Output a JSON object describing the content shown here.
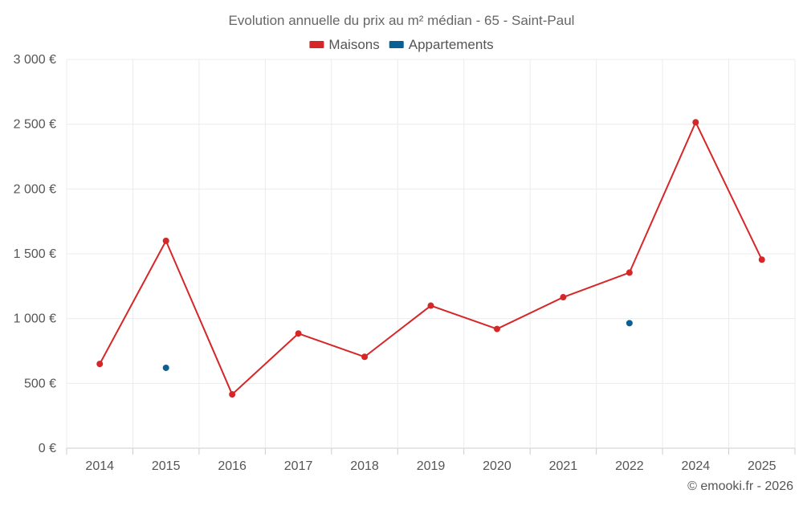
{
  "chart_data": {
    "type": "line",
    "title": "Evolution annuelle du prix au m² médian - 65 - Saint-Paul",
    "categories": [
      "2014",
      "2015",
      "2016",
      "2017",
      "2018",
      "2019",
      "2020",
      "2021",
      "2022",
      "2024",
      "2025"
    ],
    "series": [
      {
        "name": "Maisons",
        "color": "#d62728",
        "values": [
          650,
          1600,
          415,
          885,
          705,
          1100,
          920,
          1165,
          1355,
          2515,
          1455
        ]
      },
      {
        "name": "Appartements",
        "color": "#0a5f95",
        "values": [
          null,
          620,
          null,
          null,
          null,
          null,
          null,
          null,
          965,
          null,
          null
        ]
      }
    ],
    "ylim": [
      0,
      3000
    ],
    "yticks": [
      0,
      500,
      1000,
      1500,
      2000,
      2500,
      3000
    ],
    "ytick_labels": [
      "0 €",
      "500 €",
      "1 000 €",
      "1 500 €",
      "2 000 €",
      "2 500 €",
      "3 000 €"
    ],
    "xlabel": "",
    "ylabel": "",
    "grid": true,
    "legend_position": "top-center"
  },
  "credit": "© emooki.fr - 2026"
}
